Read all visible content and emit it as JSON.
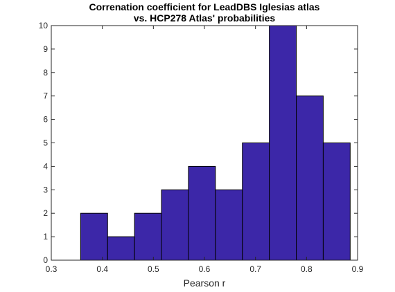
{
  "chart_data": {
    "type": "bar",
    "title": "Correnation coefficient for LeadDBS Iglesias atlas",
    "subtitle": "vs. HCP278 Atlas' probabilities",
    "xlabel": "Pearson r",
    "ylabel": "",
    "xlim": [
      0.3,
      0.9
    ],
    "ylim": [
      0,
      10
    ],
    "xticks": [
      "0.3",
      "0.4",
      "0.5",
      "0.6",
      "0.7",
      "0.8",
      "0.9"
    ],
    "yticks": [
      "0",
      "1",
      "2",
      "3",
      "4",
      "5",
      "6",
      "7",
      "8",
      "9",
      "10"
    ],
    "bin_edges": [
      0.3575,
      0.4103,
      0.4631,
      0.5159,
      0.5687,
      0.6215,
      0.6743,
      0.7271,
      0.7799,
      0.8327,
      0.8855
    ],
    "values": [
      2,
      1,
      2,
      3,
      4,
      3,
      5,
      10,
      7,
      5
    ],
    "bar_color": "#3c27a8",
    "grid": false,
    "box": true
  }
}
